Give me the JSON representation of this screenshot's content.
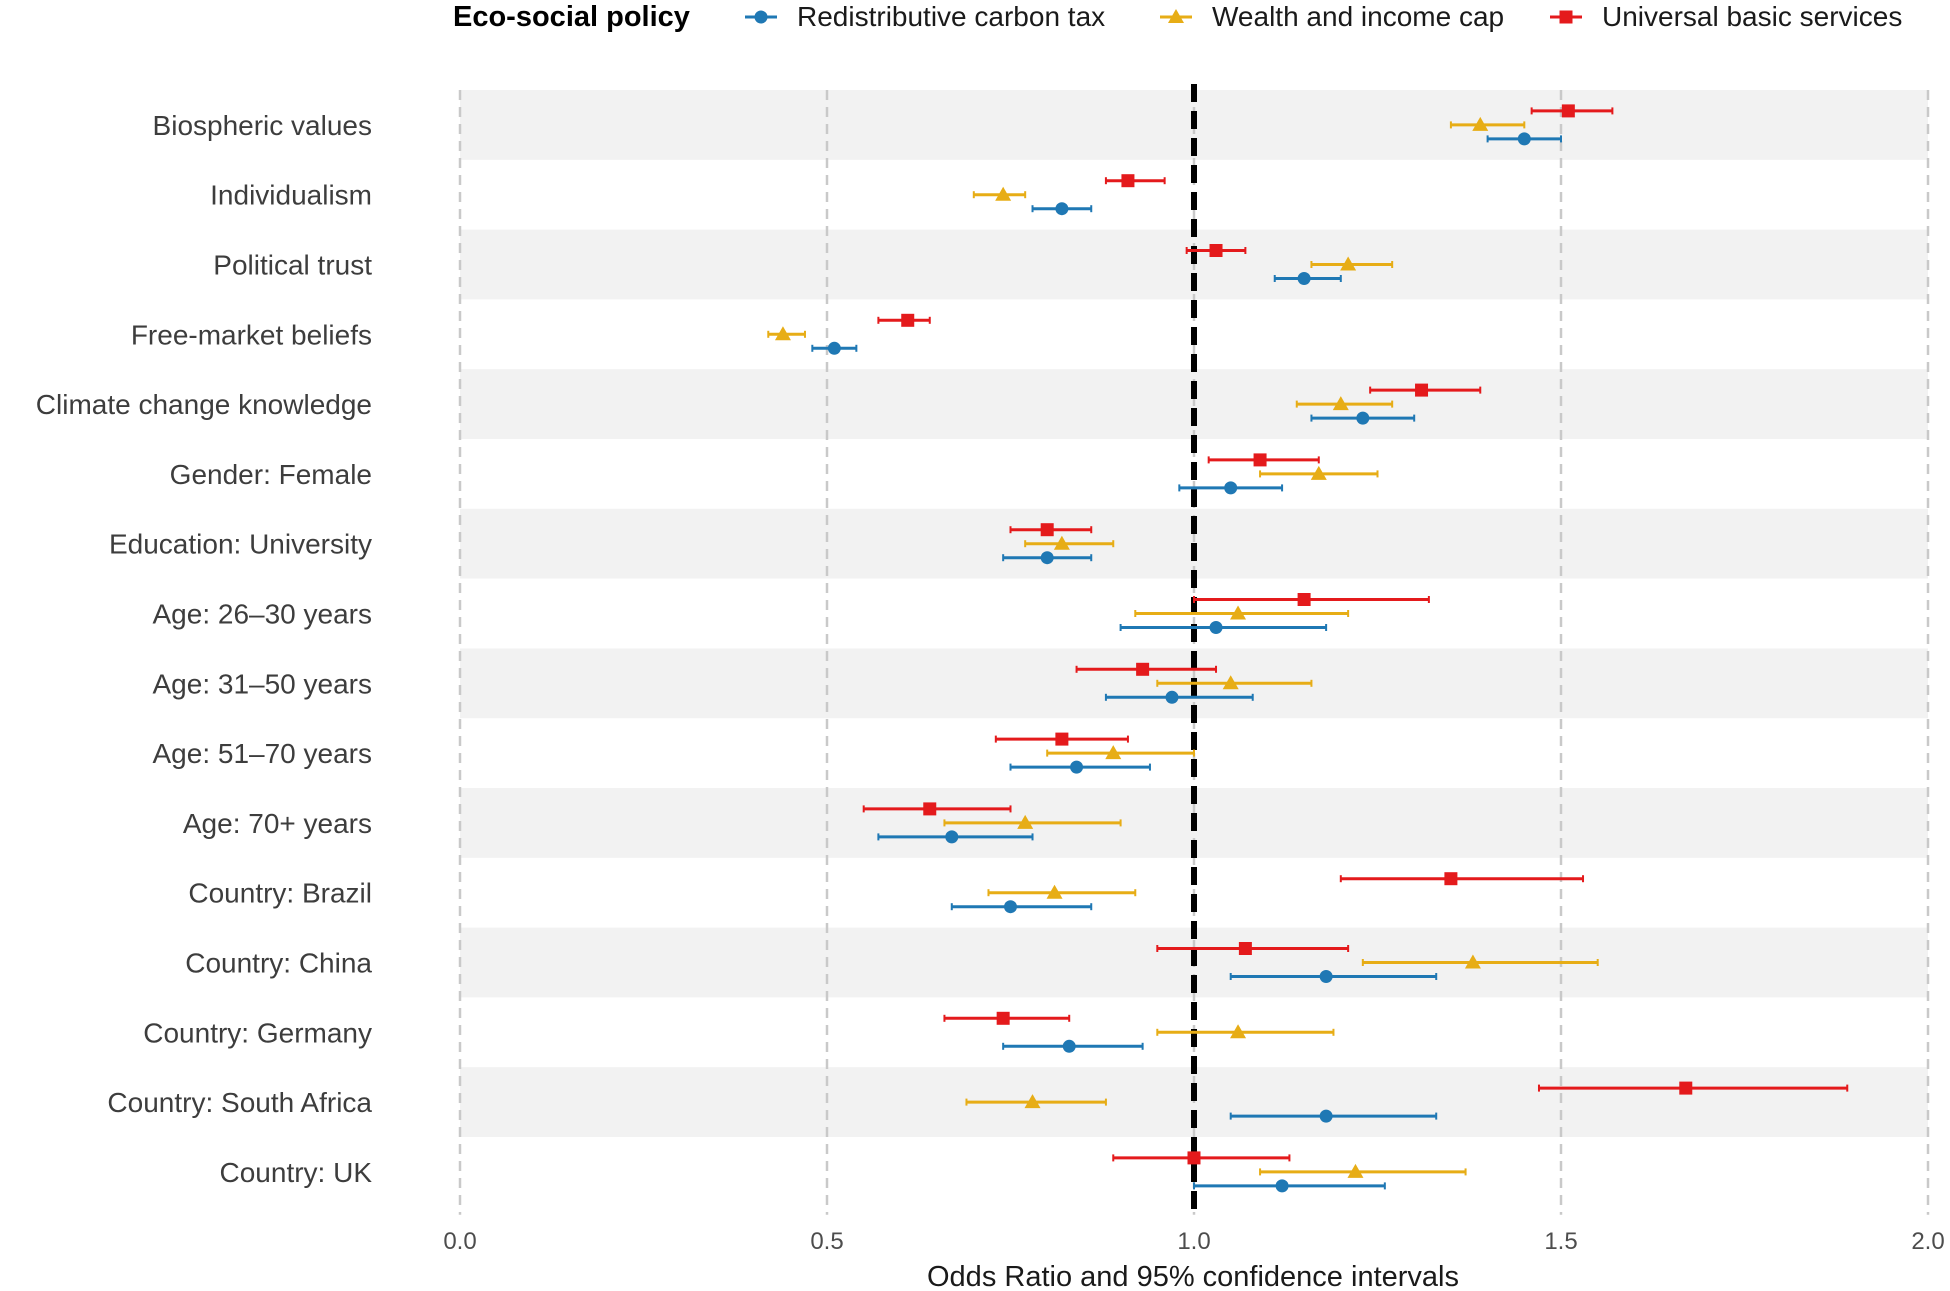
{
  "chart_data": {
    "type": "forest",
    "title": "",
    "legend_title": "Eco-social policy",
    "legend_position": "top",
    "xlabel": "Odds Ratio and 95% confidence intervals",
    "ylabel": "",
    "xlim": [
      0.0,
      2.0
    ],
    "xticks": [
      0.0,
      0.5,
      1.0,
      1.5,
      2.0
    ],
    "xtick_labels": [
      "0.0",
      "0.5",
      "1.0",
      "1.5",
      "2.0"
    ],
    "reference_line": 1.0,
    "categories": [
      "Biospheric values",
      "Individualism",
      "Political trust",
      "Free-market beliefs",
      "Climate change knowledge",
      "Gender: Female",
      "Education: University",
      "Age: 26–30 years",
      "Age: 31–50 years",
      "Age: 51–70 years",
      "Age: 70+ years",
      "Country: Brazil",
      "Country: China",
      "Country: Germany",
      "Country: South Africa",
      "Country: UK"
    ],
    "series": [
      {
        "name": "Universal basic services",
        "color": "#e41a1c",
        "marker": "square",
        "estimates": [
          1.51,
          0.91,
          1.03,
          0.61,
          1.31,
          1.09,
          0.8,
          1.15,
          0.93,
          0.82,
          0.64,
          1.35,
          1.07,
          0.74,
          1.67,
          1.0
        ],
        "lower": [
          1.46,
          0.88,
          0.99,
          0.57,
          1.24,
          1.02,
          0.75,
          1.0,
          0.84,
          0.73,
          0.55,
          1.2,
          0.95,
          0.66,
          1.47,
          0.89
        ],
        "upper": [
          1.57,
          0.96,
          1.07,
          0.64,
          1.39,
          1.17,
          0.86,
          1.32,
          1.03,
          0.91,
          0.75,
          1.53,
          1.21,
          0.83,
          1.89,
          1.13
        ]
      },
      {
        "name": "Wealth and income cap",
        "color": "#e7ad16",
        "marker": "triangle",
        "estimates": [
          1.39,
          0.74,
          1.21,
          0.44,
          1.2,
          1.17,
          0.82,
          1.06,
          1.05,
          0.89,
          0.77,
          0.81,
          1.38,
          1.06,
          0.78,
          1.22
        ],
        "lower": [
          1.35,
          0.7,
          1.16,
          0.42,
          1.14,
          1.09,
          0.77,
          0.92,
          0.95,
          0.8,
          0.66,
          0.72,
          1.23,
          0.95,
          0.69,
          1.09
        ],
        "upper": [
          1.45,
          0.77,
          1.27,
          0.47,
          1.27,
          1.25,
          0.89,
          1.21,
          1.16,
          1.0,
          0.9,
          0.92,
          1.55,
          1.19,
          0.88,
          1.37
        ]
      },
      {
        "name": "Redistributive carbon tax",
        "color": "#1f78b4",
        "marker": "circle",
        "estimates": [
          1.45,
          0.82,
          1.15,
          0.51,
          1.23,
          1.05,
          0.8,
          1.03,
          0.97,
          0.84,
          0.67,
          0.75,
          1.18,
          0.83,
          1.18,
          1.12
        ],
        "lower": [
          1.4,
          0.78,
          1.11,
          0.48,
          1.16,
          0.98,
          0.74,
          0.9,
          0.88,
          0.75,
          0.57,
          0.67,
          1.05,
          0.74,
          1.05,
          1.0
        ],
        "upper": [
          1.5,
          0.86,
          1.2,
          0.54,
          1.3,
          1.12,
          0.86,
          1.18,
          1.08,
          0.94,
          0.78,
          0.86,
          1.33,
          0.93,
          1.33,
          1.26
        ]
      }
    ],
    "legend_order": [
      "Redistributive carbon tax",
      "Wealth and income cap",
      "Universal basic services"
    ]
  }
}
